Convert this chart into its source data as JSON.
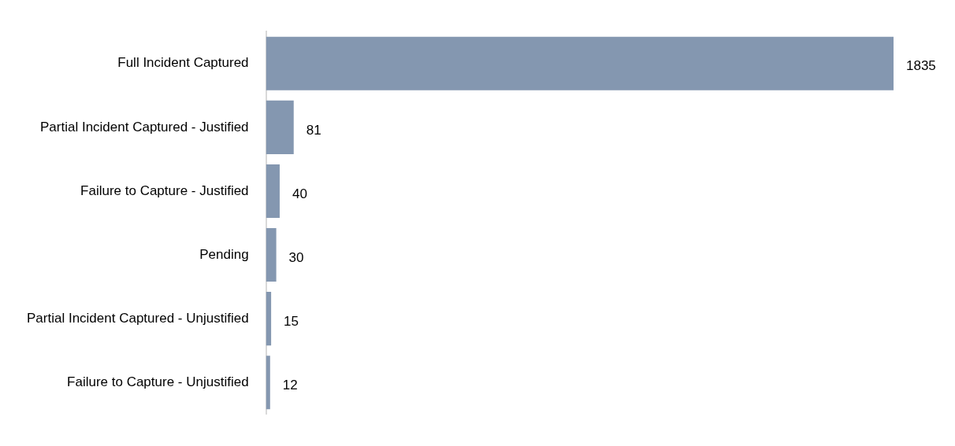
{
  "chart_data": {
    "type": "bar",
    "orientation": "horizontal",
    "categories": [
      "Full Incident Captured",
      "Partial Incident Captured - Justified",
      "Failure to Capture - Justified",
      "Pending",
      "Partial Incident Captured - Unjustified",
      "Failure to Capture - Unjustified"
    ],
    "values": [
      1835,
      81,
      40,
      30,
      15,
      12
    ],
    "color": "#8497b0",
    "xlim": [
      0,
      1835
    ],
    "tick_labels": "y",
    "grid": false,
    "legend": false,
    "data_labels": true
  }
}
